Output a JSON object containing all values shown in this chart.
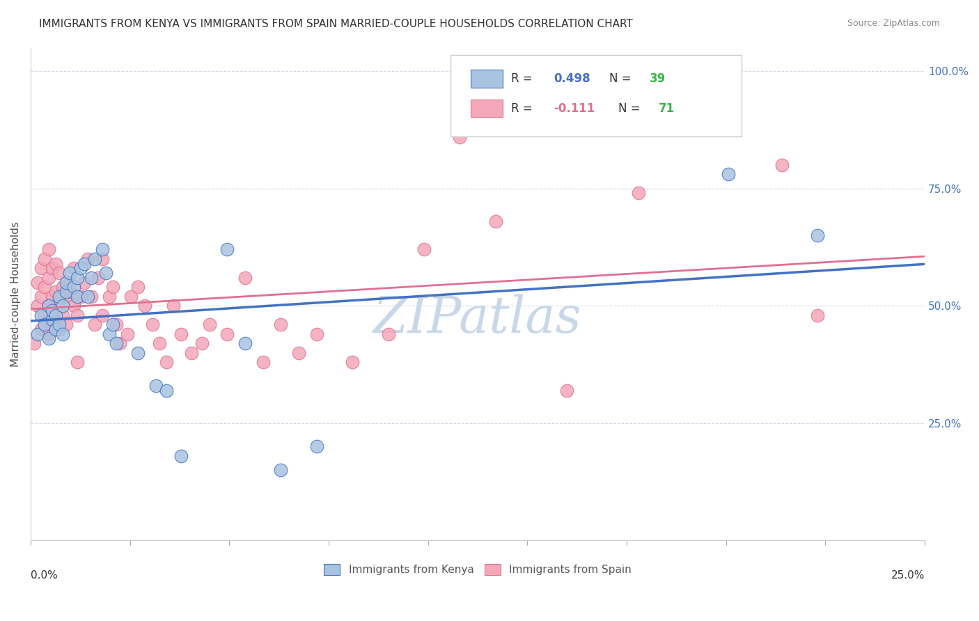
{
  "title": "IMMIGRANTS FROM KENYA VS IMMIGRANTS FROM SPAIN MARRIED-COUPLE HOUSEHOLDS CORRELATION CHART",
  "source": "Source: ZipAtlas.com",
  "ylabel": "Married-couple Households",
  "kenya_R": 0.498,
  "kenya_N": 39,
  "spain_R": -0.111,
  "spain_N": 71,
  "kenya_color": "#a8c4e0",
  "kenya_line_color": "#4472c4",
  "spain_color": "#f4a7b9",
  "spain_line_color": "#e07090",
  "legend_R_color": "#4472c4",
  "legend_N_color": "#39b54a",
  "watermark": "ZIPatlas",
  "watermark_color": "#c8d8e8",
  "background_color": "#ffffff",
  "grid_color": "#d0d8e8",
  "kenya_scatter_x": [
    0.002,
    0.003,
    0.004,
    0.005,
    0.005,
    0.006,
    0.006,
    0.007,
    0.007,
    0.008,
    0.008,
    0.009,
    0.009,
    0.01,
    0.01,
    0.011,
    0.012,
    0.013,
    0.013,
    0.014,
    0.015,
    0.016,
    0.017,
    0.018,
    0.02,
    0.021,
    0.022,
    0.023,
    0.024,
    0.03,
    0.035,
    0.038,
    0.042,
    0.055,
    0.06,
    0.07,
    0.08,
    0.195,
    0.22
  ],
  "kenya_scatter_y": [
    0.44,
    0.48,
    0.46,
    0.5,
    0.43,
    0.47,
    0.49,
    0.45,
    0.48,
    0.52,
    0.46,
    0.5,
    0.44,
    0.53,
    0.55,
    0.57,
    0.54,
    0.56,
    0.52,
    0.58,
    0.59,
    0.52,
    0.56,
    0.6,
    0.62,
    0.57,
    0.44,
    0.46,
    0.42,
    0.4,
    0.33,
    0.32,
    0.18,
    0.62,
    0.42,
    0.15,
    0.2,
    0.78,
    0.65
  ],
  "spain_scatter_x": [
    0.001,
    0.002,
    0.002,
    0.003,
    0.003,
    0.003,
    0.004,
    0.004,
    0.004,
    0.005,
    0.005,
    0.005,
    0.005,
    0.006,
    0.006,
    0.006,
    0.007,
    0.007,
    0.007,
    0.008,
    0.008,
    0.008,
    0.009,
    0.009,
    0.01,
    0.01,
    0.011,
    0.011,
    0.012,
    0.012,
    0.013,
    0.013,
    0.014,
    0.015,
    0.016,
    0.017,
    0.018,
    0.019,
    0.02,
    0.02,
    0.022,
    0.023,
    0.024,
    0.025,
    0.027,
    0.028,
    0.03,
    0.032,
    0.034,
    0.036,
    0.038,
    0.04,
    0.042,
    0.045,
    0.048,
    0.05,
    0.055,
    0.06,
    0.065,
    0.07,
    0.075,
    0.08,
    0.09,
    0.1,
    0.11,
    0.12,
    0.13,
    0.15,
    0.17,
    0.21,
    0.22
  ],
  "spain_scatter_y": [
    0.42,
    0.5,
    0.55,
    0.45,
    0.52,
    0.58,
    0.48,
    0.54,
    0.6,
    0.44,
    0.5,
    0.56,
    0.62,
    0.46,
    0.52,
    0.58,
    0.47,
    0.53,
    0.59,
    0.45,
    0.51,
    0.57,
    0.48,
    0.54,
    0.46,
    0.52,
    0.53,
    0.55,
    0.5,
    0.58,
    0.48,
    0.38,
    0.52,
    0.55,
    0.6,
    0.52,
    0.46,
    0.56,
    0.48,
    0.6,
    0.52,
    0.54,
    0.46,
    0.42,
    0.44,
    0.52,
    0.54,
    0.5,
    0.46,
    0.42,
    0.38,
    0.5,
    0.44,
    0.4,
    0.42,
    0.46,
    0.44,
    0.56,
    0.38,
    0.46,
    0.4,
    0.44,
    0.38,
    0.44,
    0.62,
    0.86,
    0.68,
    0.32,
    0.74,
    0.8,
    0.48
  ],
  "xmin": 0.0,
  "xmax": 0.25,
  "ymin": 0.0,
  "ymax": 1.05
}
